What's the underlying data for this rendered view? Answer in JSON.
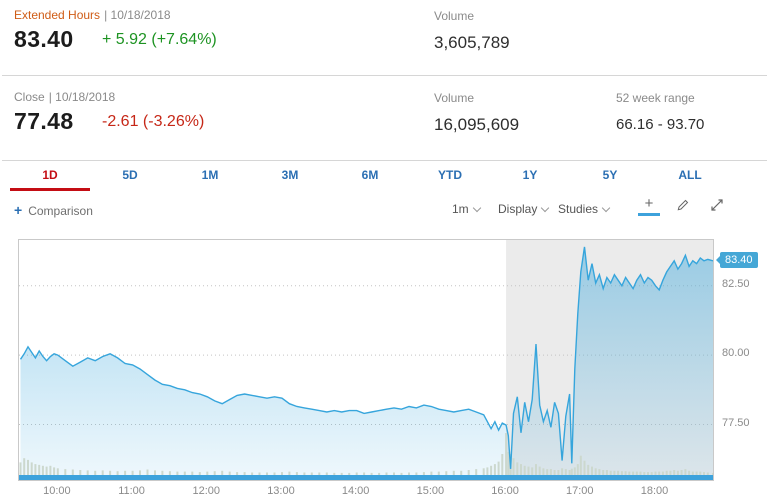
{
  "quote": {
    "extended": {
      "session_label": "Extended Hours",
      "date": "| 10/18/2018",
      "price": "83.40",
      "change": "+ 5.92 (+7.64%)",
      "volume_label": "Volume",
      "volume_value": "3,605,789"
    },
    "close": {
      "session_label": "Close",
      "date": "| 10/18/2018",
      "price": "77.48",
      "change": "-2.61 (-3.26%)",
      "volume_label": "Volume",
      "volume_value": "16,095,609",
      "range_label": "52 week range",
      "range_value": "66.16 - 93.70"
    }
  },
  "tabs": {
    "items": [
      {
        "label": "1D",
        "active": true
      },
      {
        "label": "5D",
        "active": false
      },
      {
        "label": "1M",
        "active": false
      },
      {
        "label": "3M",
        "active": false
      },
      {
        "label": "6M",
        "active": false
      },
      {
        "label": "YTD",
        "active": false
      },
      {
        "label": "1Y",
        "active": false
      },
      {
        "label": "5Y",
        "active": false
      },
      {
        "label": "ALL",
        "active": false
      }
    ]
  },
  "toolbar": {
    "plus_icon": "+",
    "comparison_label": "Comparison",
    "interval_value": "1m",
    "display_label": "Display",
    "studies_label": "Studies",
    "crosshair_glyph": "+"
  },
  "colors": {
    "accent_orange": "#cf5c16",
    "positive_green": "#1d9322",
    "negative_red": "#c62717",
    "tab_blue": "#2b6fb3",
    "active_tab_red": "#c40d14",
    "line_blue": "#36a5dc",
    "price_tag_blue": "#45a7d6"
  },
  "chart_data": {
    "type": "area",
    "title": "1D intraday price chart with extended hours session",
    "xlim": [
      9.48,
      18.77
    ],
    "ylim": [
      75.5,
      84.15
    ],
    "gridlines": [
      82.5,
      80.0,
      77.5
    ],
    "y_tick_labels": [
      "82.50",
      "80.00",
      "77.50"
    ],
    "x_ticks": [
      10,
      11,
      12,
      13,
      14,
      15,
      16,
      17,
      18
    ],
    "x_tick_labels": [
      "10:00",
      "11:00",
      "12:00",
      "13:00",
      "14:00",
      "15:00",
      "16:00",
      "17:00",
      "18:00"
    ],
    "afterhours_start": 16.0,
    "last_price_label": "83.40",
    "colors": {
      "line": "#36a5dc",
      "afterhours": "#ebebeb",
      "volume": "#ccd8ce",
      "navigator": "#3da2dc"
    },
    "points": [
      [
        9.5,
        79.85,
        0.3
      ],
      [
        9.55,
        80.05,
        0.4
      ],
      [
        9.6,
        80.3,
        0.36
      ],
      [
        9.65,
        80.1,
        0.3
      ],
      [
        9.7,
        79.9,
        0.26
      ],
      [
        9.75,
        80.15,
        0.24
      ],
      [
        9.8,
        79.95,
        0.22
      ],
      [
        9.85,
        79.8,
        0.2
      ],
      [
        9.9,
        79.95,
        0.22
      ],
      [
        9.95,
        80.05,
        0.18
      ],
      [
        10.0,
        80.0,
        0.16
      ],
      [
        10.1,
        79.8,
        0.14
      ],
      [
        10.2,
        79.6,
        0.13
      ],
      [
        10.3,
        79.75,
        0.12
      ],
      [
        10.4,
        79.9,
        0.11
      ],
      [
        10.5,
        79.8,
        0.1
      ],
      [
        10.6,
        79.95,
        0.11
      ],
      [
        10.7,
        80.05,
        0.1
      ],
      [
        10.8,
        79.9,
        0.09
      ],
      [
        10.9,
        79.7,
        0.1
      ],
      [
        11.0,
        79.65,
        0.1
      ],
      [
        11.1,
        79.5,
        0.11
      ],
      [
        11.2,
        79.3,
        0.13
      ],
      [
        11.3,
        79.1,
        0.11
      ],
      [
        11.4,
        78.95,
        0.1
      ],
      [
        11.5,
        78.9,
        0.09
      ],
      [
        11.6,
        78.8,
        0.08
      ],
      [
        11.7,
        78.75,
        0.08
      ],
      [
        11.8,
        78.65,
        0.08
      ],
      [
        11.9,
        78.6,
        0.07
      ],
      [
        12.0,
        78.5,
        0.08
      ],
      [
        12.1,
        78.35,
        0.09
      ],
      [
        12.2,
        78.25,
        0.1
      ],
      [
        12.3,
        78.4,
        0.08
      ],
      [
        12.4,
        78.55,
        0.07
      ],
      [
        12.5,
        78.6,
        0.07
      ],
      [
        12.6,
        78.55,
        0.06
      ],
      [
        12.7,
        78.5,
        0.06
      ],
      [
        12.8,
        78.45,
        0.06
      ],
      [
        12.9,
        78.5,
        0.06
      ],
      [
        13.0,
        78.45,
        0.07
      ],
      [
        13.1,
        78.25,
        0.08
      ],
      [
        13.2,
        78.15,
        0.07
      ],
      [
        13.3,
        78.1,
        0.06
      ],
      [
        13.4,
        78.05,
        0.06
      ],
      [
        13.5,
        78.0,
        0.06
      ],
      [
        13.6,
        77.95,
        0.06
      ],
      [
        13.7,
        78.0,
        0.05
      ],
      [
        13.8,
        77.95,
        0.05
      ],
      [
        13.9,
        78.0,
        0.05
      ],
      [
        14.0,
        78.0,
        0.06
      ],
      [
        14.1,
        77.9,
        0.06
      ],
      [
        14.2,
        77.95,
        0.05
      ],
      [
        14.3,
        78.0,
        0.05
      ],
      [
        14.4,
        78.05,
        0.06
      ],
      [
        14.5,
        78.1,
        0.06
      ],
      [
        14.6,
        78.05,
        0.05
      ],
      [
        14.7,
        78.15,
        0.06
      ],
      [
        14.8,
        78.1,
        0.06
      ],
      [
        14.9,
        78.2,
        0.07
      ],
      [
        15.0,
        78.15,
        0.08
      ],
      [
        15.1,
        78.05,
        0.08
      ],
      [
        15.2,
        78.0,
        0.09
      ],
      [
        15.3,
        77.95,
        0.1
      ],
      [
        15.4,
        78.0,
        0.1
      ],
      [
        15.5,
        78.05,
        0.12
      ],
      [
        15.6,
        77.95,
        0.14
      ],
      [
        15.7,
        77.85,
        0.16
      ],
      [
        15.75,
        77.6,
        0.18
      ],
      [
        15.8,
        77.35,
        0.22
      ],
      [
        15.85,
        77.6,
        0.26
      ],
      [
        15.9,
        77.3,
        0.32
      ],
      [
        15.95,
        77.55,
        0.5
      ],
      [
        16.0,
        77.48,
        1.0
      ],
      [
        16.03,
        77.1,
        0.55
      ],
      [
        16.06,
        75.9,
        0.5
      ],
      [
        16.1,
        77.9,
        0.4
      ],
      [
        16.15,
        78.5,
        0.3
      ],
      [
        16.2,
        77.2,
        0.26
      ],
      [
        16.25,
        78.3,
        0.22
      ],
      [
        16.3,
        77.6,
        0.2
      ],
      [
        16.35,
        78.4,
        0.18
      ],
      [
        16.4,
        80.4,
        0.26
      ],
      [
        16.45,
        78.2,
        0.2
      ],
      [
        16.5,
        77.6,
        0.16
      ],
      [
        16.55,
        78.0,
        0.14
      ],
      [
        16.6,
        77.4,
        0.14
      ],
      [
        16.65,
        78.3,
        0.12
      ],
      [
        16.7,
        77.9,
        0.12
      ],
      [
        16.75,
        76.2,
        0.16
      ],
      [
        16.8,
        77.8,
        0.14
      ],
      [
        16.85,
        78.6,
        0.12
      ],
      [
        16.88,
        76.1,
        0.15
      ],
      [
        16.92,
        79.5,
        0.18
      ],
      [
        16.96,
        81.5,
        0.26
      ],
      [
        17.0,
        83.0,
        0.46
      ],
      [
        17.05,
        83.9,
        0.34
      ],
      [
        17.1,
        82.7,
        0.24
      ],
      [
        17.15,
        83.3,
        0.2
      ],
      [
        17.2,
        82.6,
        0.16
      ],
      [
        17.25,
        82.9,
        0.14
      ],
      [
        17.3,
        82.4,
        0.12
      ],
      [
        17.35,
        82.8,
        0.12
      ],
      [
        17.4,
        82.6,
        0.1
      ],
      [
        17.45,
        82.9,
        0.1
      ],
      [
        17.5,
        82.7,
        0.1
      ],
      [
        17.55,
        82.5,
        0.09
      ],
      [
        17.6,
        82.8,
        0.09
      ],
      [
        17.65,
        82.6,
        0.08
      ],
      [
        17.7,
        82.4,
        0.08
      ],
      [
        17.75,
        82.7,
        0.08
      ],
      [
        17.8,
        82.9,
        0.08
      ],
      [
        17.85,
        82.6,
        0.07
      ],
      [
        17.9,
        82.8,
        0.07
      ],
      [
        17.95,
        82.7,
        0.07
      ],
      [
        18.0,
        82.5,
        0.08
      ],
      [
        18.05,
        82.35,
        0.08
      ],
      [
        18.1,
        82.7,
        0.08
      ],
      [
        18.15,
        83.0,
        0.1
      ],
      [
        18.2,
        83.2,
        0.1
      ],
      [
        18.25,
        83.4,
        0.12
      ],
      [
        18.3,
        83.1,
        0.1
      ],
      [
        18.35,
        83.3,
        0.12
      ],
      [
        18.4,
        83.6,
        0.14
      ],
      [
        18.45,
        83.2,
        0.1
      ],
      [
        18.5,
        83.4,
        0.08
      ],
      [
        18.55,
        83.3,
        0.08
      ],
      [
        18.6,
        83.5,
        0.08
      ],
      [
        18.65,
        83.4,
        0.07
      ],
      [
        18.7,
        83.45,
        0.06
      ],
      [
        18.77,
        83.4,
        0.05
      ]
    ]
  }
}
